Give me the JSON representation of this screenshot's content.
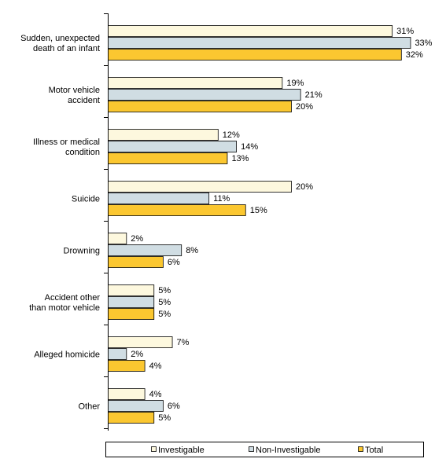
{
  "chart_data": {
    "type": "bar",
    "orientation": "horizontal",
    "categories": [
      [
        "Sudden, unexpected",
        "death of an infant"
      ],
      [
        "Motor vehicle",
        "accident"
      ],
      [
        "Illness or medical",
        "condition"
      ],
      [
        "Suicide"
      ],
      [
        "Drowning"
      ],
      [
        "Accident other",
        "than motor vehicle"
      ],
      [
        "Alleged homicide"
      ],
      [
        "Other"
      ]
    ],
    "series": [
      {
        "name": "Investigable",
        "color": "#fdf8de",
        "values": [
          31,
          19,
          12,
          20,
          2,
          5,
          7,
          4
        ],
        "labels": [
          "31%",
          "19%",
          "12%",
          "20%",
          "2%",
          "5%",
          "7%",
          "4%"
        ]
      },
      {
        "name": "Non-Investigable",
        "color": "#d0dde3",
        "values": [
          33,
          21,
          14,
          11,
          8,
          5,
          2,
          6
        ],
        "labels": [
          "33%",
          "21%",
          "14%",
          "11%",
          "8%",
          "5%",
          "2%",
          "6%"
        ]
      },
      {
        "name": "Total",
        "color": "#fbc730",
        "values": [
          32,
          20,
          13,
          15,
          6,
          5,
          4,
          5
        ],
        "labels": [
          "32%",
          "20%",
          "13%",
          "15%",
          "6%",
          "5%",
          "4%",
          "5%"
        ]
      }
    ],
    "xlim": [
      0,
      35
    ],
    "grid": false,
    "legend_position": "bottom"
  }
}
